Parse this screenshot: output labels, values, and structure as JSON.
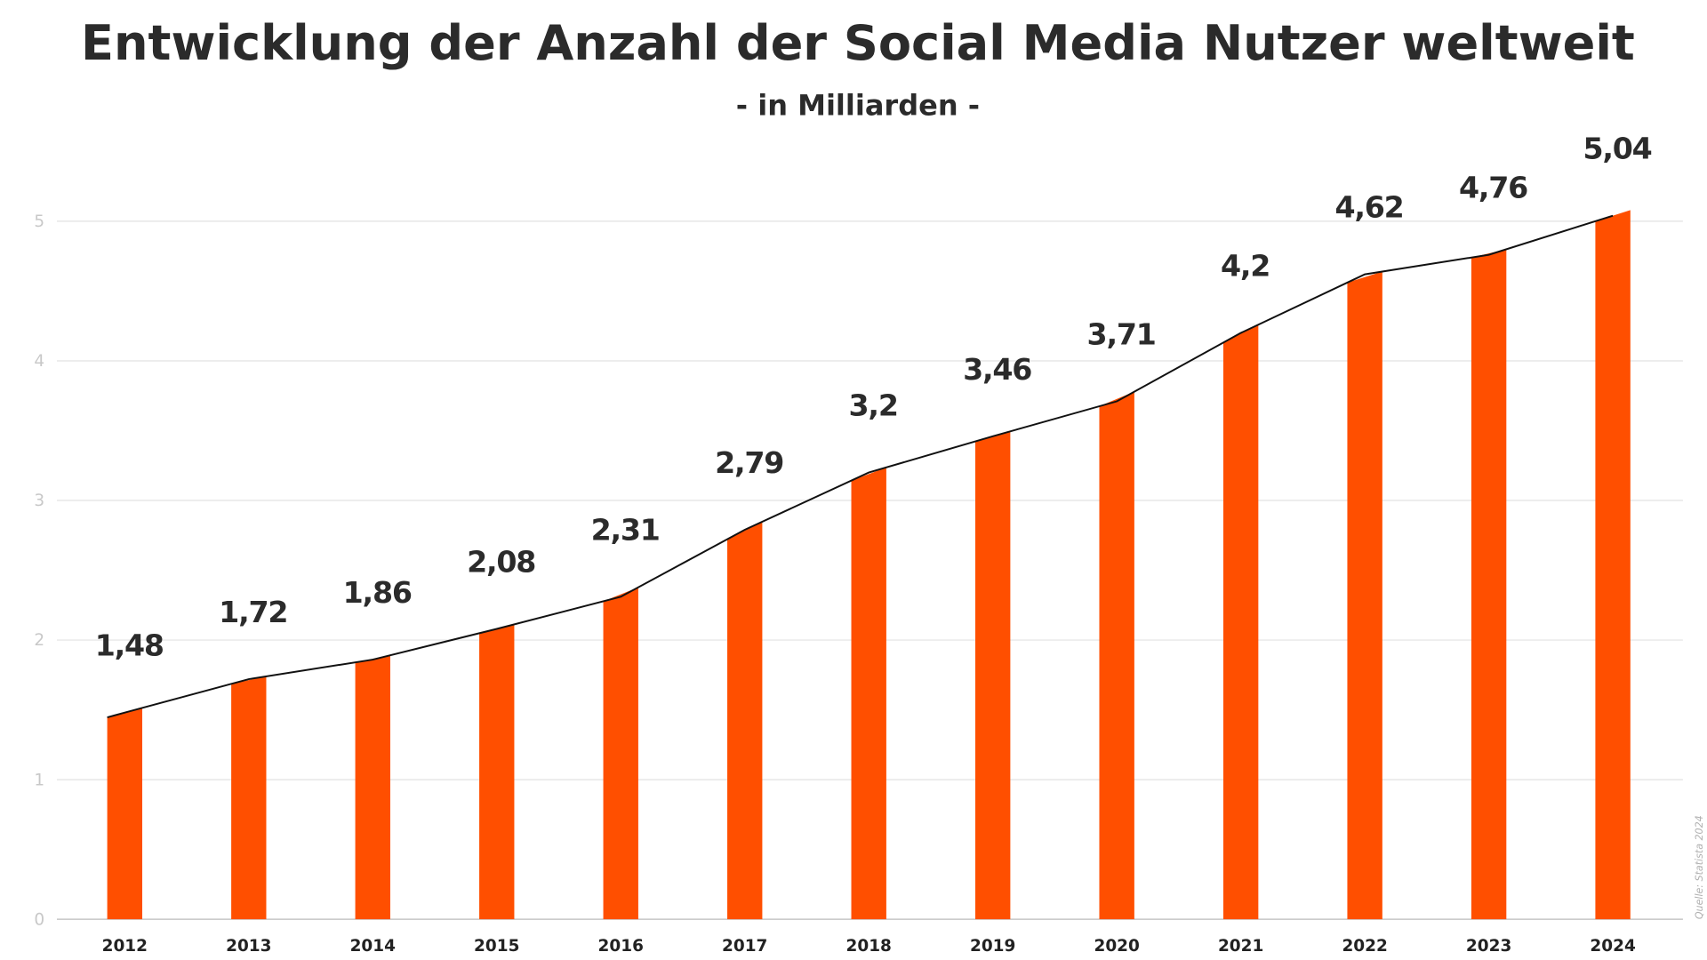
{
  "chart_data": {
    "type": "bar",
    "title": "Entwicklung der Anzahl der Social Media Nutzer weltweit",
    "subtitle": "- in Milliarden -",
    "categories": [
      "2012",
      "2013",
      "2014",
      "2015",
      "2016",
      "2017",
      "2018",
      "2019",
      "2020",
      "2021",
      "2022",
      "2023",
      "2024"
    ],
    "values": [
      1.48,
      1.72,
      1.86,
      2.08,
      2.31,
      2.79,
      3.2,
      3.46,
      3.71,
      4.2,
      4.62,
      4.76,
      5.04
    ],
    "data_labels": [
      "1,48",
      "1,72",
      "1,86",
      "2,08",
      "2,31",
      "2,79",
      "3,2",
      "3,46",
      "3,71",
      "4,2",
      "4,62",
      "4,76",
      "5,04"
    ],
    "yticks": [
      0,
      1,
      2,
      3,
      4,
      5
    ],
    "ylim": [
      0,
      5.3
    ],
    "xlabel": "",
    "ylabel": "",
    "grid": true,
    "overlay_line": true,
    "bar_color": "#ff4f00",
    "line_color": "#111111",
    "source": "Quelle: Statista 2024"
  }
}
